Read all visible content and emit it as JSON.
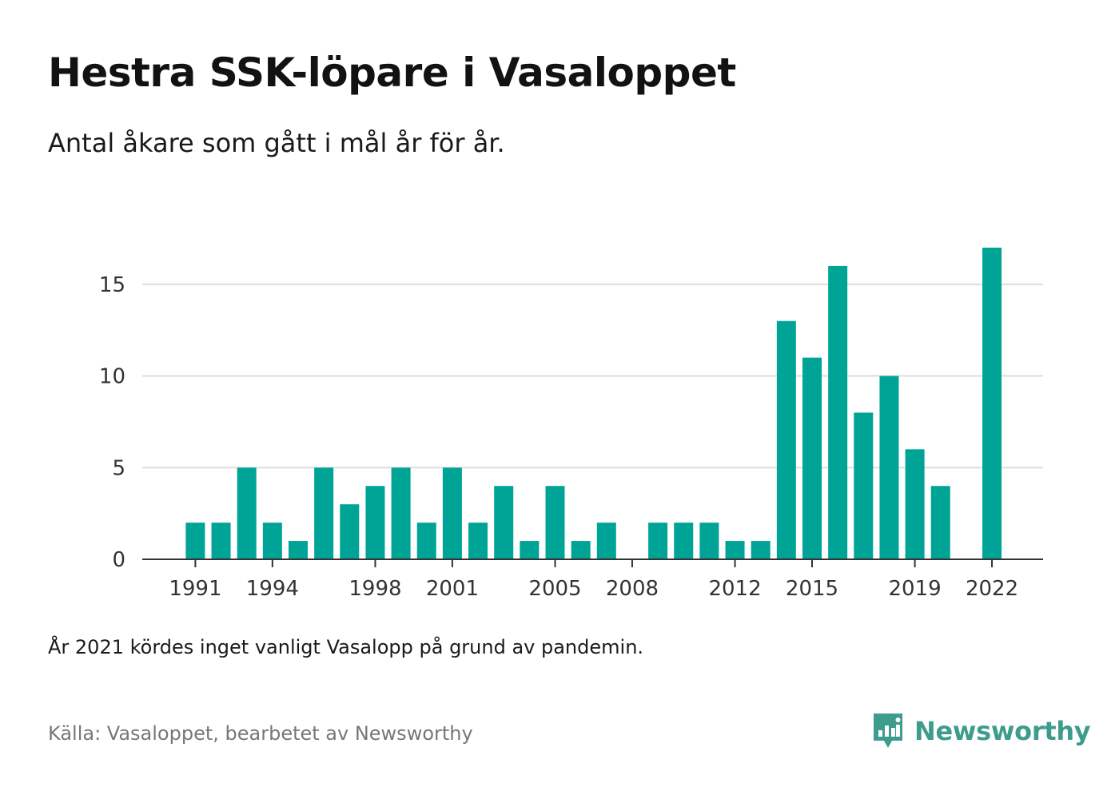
{
  "header": {
    "title": "Hestra SSK-löpare i Vasaloppet",
    "subtitle": "Antal åkare som gått i mål år för år."
  },
  "footer": {
    "note": "År 2021 kördes inget vanligt Vasalopp på grund av pandemin.",
    "source": "Källa: Vasaloppet, bearbetet av Newsworthy",
    "brand": "Newsworthy"
  },
  "colors": {
    "bar": "#00a497",
    "brand": "#3d9c8c",
    "grid": "#dddddd",
    "axis": "#333333"
  },
  "chart_data": {
    "type": "bar",
    "title": "Hestra SSK-löpare i Vasaloppet",
    "subtitle": "Antal åkare som gått i mål år för år.",
    "xlabel": "",
    "ylabel": "",
    "categories": [
      1991,
      1992,
      1993,
      1994,
      1995,
      1996,
      1997,
      1998,
      1999,
      2000,
      2001,
      2002,
      2003,
      2004,
      2005,
      2006,
      2007,
      2008,
      2009,
      2010,
      2011,
      2012,
      2013,
      2014,
      2015,
      2016,
      2017,
      2018,
      2019,
      2020,
      2021,
      2022
    ],
    "values": [
      2,
      2,
      5,
      2,
      1,
      5,
      3,
      4,
      5,
      2,
      5,
      2,
      4,
      1,
      4,
      1,
      2,
      0,
      2,
      2,
      2,
      1,
      1,
      13,
      11,
      16,
      8,
      10,
      6,
      4,
      null,
      17
    ],
    "x_tick_labels": [
      "1991",
      "1994",
      "1998",
      "2001",
      "2005",
      "2008",
      "2012",
      "2015",
      "2019",
      "2022"
    ],
    "y_ticks": [
      0,
      5,
      10,
      15
    ],
    "ylim": [
      0,
      18
    ],
    "grid": "horizontal",
    "legend": "none"
  }
}
